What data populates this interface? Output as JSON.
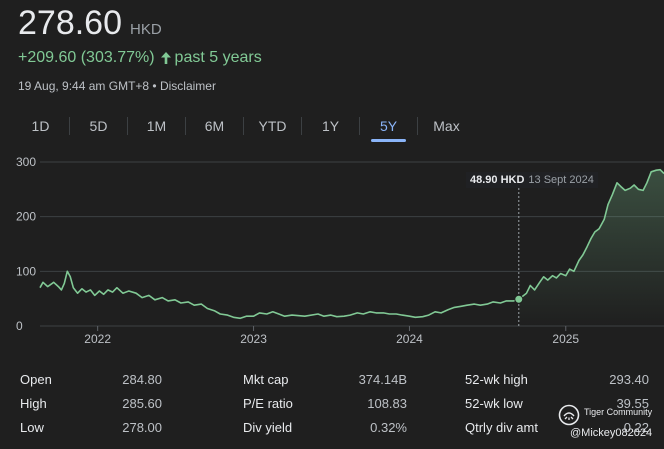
{
  "quote": {
    "price": "278.60",
    "currency": "HKD",
    "change": "+209.60 (303.77%)",
    "period": "past 5 years",
    "timestamp": "19 Aug, 9:44 am GMT+8",
    "separator": " • ",
    "disclaimer": "Disclaimer"
  },
  "ranges": [
    "1D",
    "5D",
    "1M",
    "6M",
    "YTD",
    "1Y",
    "5Y",
    "Max"
  ],
  "active_range": "5Y",
  "tooltip": {
    "value": "48.90 HKD",
    "date": "13 Sept 2024"
  },
  "colors": {
    "line": "#81c995",
    "accent": "#8ab4f8",
    "background": "#1f1f1f",
    "grid": "#3c4043"
  },
  "chart_data": {
    "type": "area",
    "title": "",
    "xlabel": "",
    "ylabel": "",
    "ylim": [
      0,
      300
    ],
    "xlim": [
      "2021-08-19",
      "2025-08-19"
    ],
    "yticks": [
      "300",
      "200",
      "100",
      "0"
    ],
    "xticks": [
      {
        "label": "2022",
        "date": "2022-01-01"
      },
      {
        "label": "2023",
        "date": "2023-01-01"
      },
      {
        "label": "2024",
        "date": "2024-01-01"
      },
      {
        "label": "2025",
        "date": "2025-01-01"
      }
    ],
    "grid": true,
    "highlight": {
      "date": "2024-09-13",
      "value": 48.9
    },
    "series": [
      {
        "points": [
          [
            "2021-08-19",
            70
          ],
          [
            "2021-08-26",
            80
          ],
          [
            "2021-09-06",
            72
          ],
          [
            "2021-09-20",
            80
          ],
          [
            "2021-10-01",
            72
          ],
          [
            "2021-10-08",
            66
          ],
          [
            "2021-10-15",
            78
          ],
          [
            "2021-10-22",
            100
          ],
          [
            "2021-10-29",
            90
          ],
          [
            "2021-11-05",
            70
          ],
          [
            "2021-11-15",
            60
          ],
          [
            "2021-11-25",
            68
          ],
          [
            "2021-12-05",
            62
          ],
          [
            "2021-12-15",
            66
          ],
          [
            "2021-12-25",
            56
          ],
          [
            "2022-01-05",
            64
          ],
          [
            "2022-01-15",
            58
          ],
          [
            "2022-01-25",
            66
          ],
          [
            "2022-02-05",
            62
          ],
          [
            "2022-02-15",
            70
          ],
          [
            "2022-03-01",
            60
          ],
          [
            "2022-03-15",
            64
          ],
          [
            "2022-04-01",
            60
          ],
          [
            "2022-04-15",
            52
          ],
          [
            "2022-05-01",
            56
          ],
          [
            "2022-05-15",
            48
          ],
          [
            "2022-06-01",
            52
          ],
          [
            "2022-06-15",
            46
          ],
          [
            "2022-07-01",
            48
          ],
          [
            "2022-07-15",
            42
          ],
          [
            "2022-08-01",
            44
          ],
          [
            "2022-08-15",
            38
          ],
          [
            "2022-09-01",
            40
          ],
          [
            "2022-09-15",
            32
          ],
          [
            "2022-10-01",
            28
          ],
          [
            "2022-10-15",
            22
          ],
          [
            "2022-11-01",
            20
          ],
          [
            "2022-11-15",
            16
          ],
          [
            "2022-12-01",
            14
          ],
          [
            "2022-12-15",
            18
          ],
          [
            "2023-01-01",
            18
          ],
          [
            "2023-01-15",
            24
          ],
          [
            "2023-02-01",
            22
          ],
          [
            "2023-02-15",
            26
          ],
          [
            "2023-03-01",
            22
          ],
          [
            "2023-03-15",
            18
          ],
          [
            "2023-04-01",
            20
          ],
          [
            "2023-05-01",
            18
          ],
          [
            "2023-06-01",
            22
          ],
          [
            "2023-06-15",
            18
          ],
          [
            "2023-07-01",
            20
          ],
          [
            "2023-07-15",
            17
          ],
          [
            "2023-08-01",
            18
          ],
          [
            "2023-08-15",
            20
          ],
          [
            "2023-09-01",
            24
          ],
          [
            "2023-09-15",
            22
          ],
          [
            "2023-10-01",
            26
          ],
          [
            "2023-10-15",
            24
          ],
          [
            "2023-11-01",
            24
          ],
          [
            "2023-11-15",
            22
          ],
          [
            "2023-12-01",
            22
          ],
          [
            "2023-12-15",
            20
          ],
          [
            "2024-01-01",
            18
          ],
          [
            "2024-01-15",
            16
          ],
          [
            "2024-02-01",
            17
          ],
          [
            "2024-02-15",
            20
          ],
          [
            "2024-03-01",
            26
          ],
          [
            "2024-03-15",
            24
          ],
          [
            "2024-04-01",
            30
          ],
          [
            "2024-04-15",
            34
          ],
          [
            "2024-05-01",
            36
          ],
          [
            "2024-05-15",
            38
          ],
          [
            "2024-06-01",
            40
          ],
          [
            "2024-06-15",
            38
          ],
          [
            "2024-07-01",
            40
          ],
          [
            "2024-07-15",
            44
          ],
          [
            "2024-08-01",
            42
          ],
          [
            "2024-08-15",
            46
          ],
          [
            "2024-09-01",
            46
          ],
          [
            "2024-09-13",
            48.9
          ],
          [
            "2024-10-01",
            60
          ],
          [
            "2024-10-10",
            74
          ],
          [
            "2024-10-20",
            66
          ],
          [
            "2024-11-01",
            80
          ],
          [
            "2024-11-10",
            90
          ],
          [
            "2024-11-20",
            84
          ],
          [
            "2024-12-01",
            92
          ],
          [
            "2024-12-10",
            88
          ],
          [
            "2024-12-20",
            96
          ],
          [
            "2025-01-01",
            92
          ],
          [
            "2025-01-10",
            104
          ],
          [
            "2025-01-20",
            100
          ],
          [
            "2025-02-01",
            120
          ],
          [
            "2025-02-10",
            130
          ],
          [
            "2025-02-20",
            145
          ],
          [
            "2025-03-01",
            160
          ],
          [
            "2025-03-10",
            172
          ],
          [
            "2025-03-20",
            178
          ],
          [
            "2025-04-01",
            195
          ],
          [
            "2025-04-10",
            222
          ],
          [
            "2025-04-20",
            240
          ],
          [
            "2025-05-01",
            262
          ],
          [
            "2025-05-10",
            255
          ],
          [
            "2025-05-20",
            248
          ],
          [
            "2025-06-01",
            252
          ],
          [
            "2025-06-10",
            258
          ],
          [
            "2025-06-20",
            250
          ],
          [
            "2025-07-01",
            248
          ],
          [
            "2025-07-10",
            262
          ],
          [
            "2025-07-20",
            282
          ],
          [
            "2025-08-01",
            285
          ],
          [
            "2025-08-10",
            286
          ],
          [
            "2025-08-19",
            279
          ]
        ]
      }
    ]
  },
  "stats": [
    [
      {
        "label": "Open",
        "value": "284.80"
      },
      {
        "label": "Mkt cap",
        "value": "374.14B"
      },
      {
        "label": "52-wk high",
        "value": "293.40"
      }
    ],
    [
      {
        "label": "High",
        "value": "285.60"
      },
      {
        "label": "P/E ratio",
        "value": "108.83"
      },
      {
        "label": "52-wk low",
        "value": "39.55"
      }
    ],
    [
      {
        "label": "Low",
        "value": "278.00"
      },
      {
        "label": "Div yield",
        "value": "0.32%"
      },
      {
        "label": "Qtrly div amt",
        "value": "0.22"
      }
    ]
  ],
  "watermark": {
    "brand": "Tiger Community",
    "user": "@Mickey082024",
    "logo_icon": "tiger-logo-icon"
  }
}
